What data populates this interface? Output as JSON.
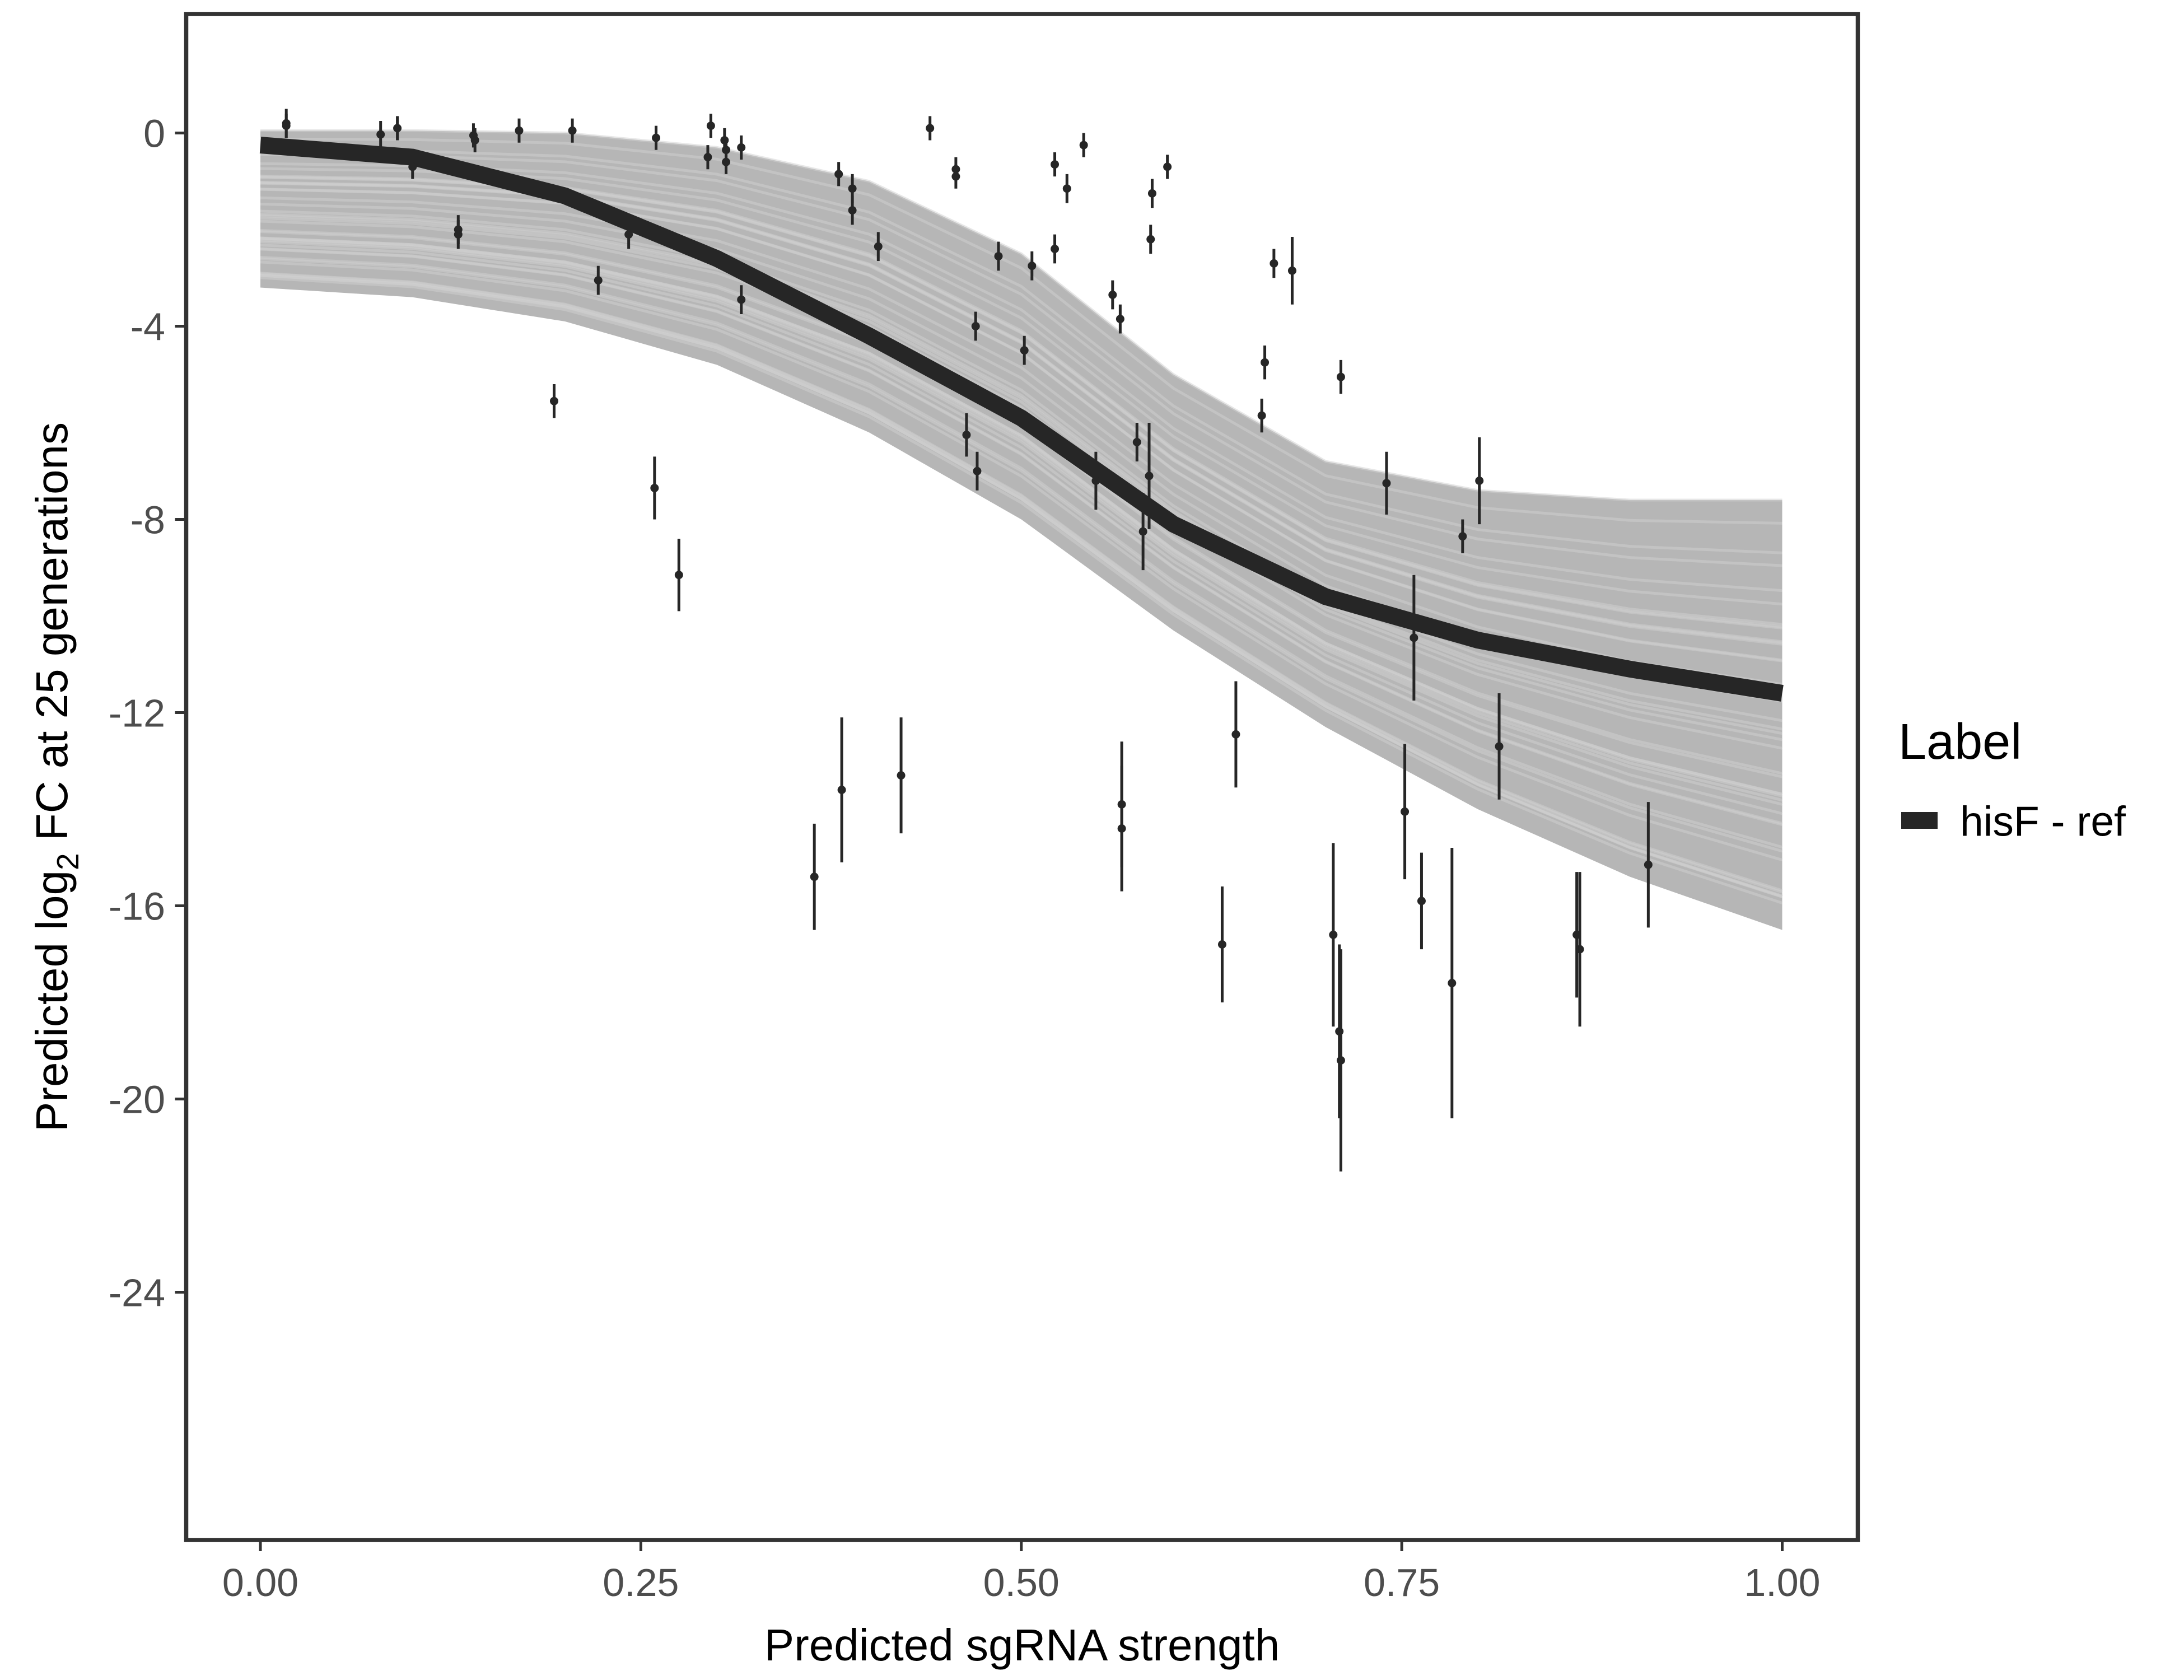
{
  "chart_data": {
    "type": "scatter",
    "xlabel": "Predicted sgRNA strength",
    "ylabel": {
      "pre": "Predicted  log",
      "sub": "2",
      "post": " FC at 25 generations"
    },
    "xlim": [
      -0.05,
      1.05
    ],
    "ylim": [
      -29.1,
      2.45
    ],
    "xticks": [
      0,
      0.25,
      0.5,
      0.75,
      1.0
    ],
    "xtick_labels": [
      "0.00",
      "0.25",
      "0.50",
      "0.75",
      "1.00"
    ],
    "yticks": [
      0,
      -4,
      -8,
      -12,
      -16,
      -20,
      -24
    ],
    "ytick_labels": [
      "0",
      "-4",
      "-8",
      "-12",
      "-16",
      "-20",
      "-24"
    ],
    "grid": false,
    "legend": {
      "title": "Label",
      "entries": [
        "hisF - ref"
      ],
      "placement": "right"
    },
    "colors": {
      "fit": "#262626",
      "band": "#a9a9a9",
      "points": "#262626",
      "frame": "#333333"
    },
    "fit_curve": {
      "name": "hisF - ref",
      "x": [
        0,
        0.1,
        0.2,
        0.3,
        0.4,
        0.5,
        0.6,
        0.7,
        0.8,
        0.9,
        1.0
      ],
      "y": [
        -0.25,
        -0.5,
        -1.3,
        -2.6,
        -4.2,
        -5.9,
        -8.1,
        -9.6,
        -10.5,
        -11.1,
        -11.6
      ]
    },
    "posterior_band": {
      "x": [
        0,
        0.1,
        0.2,
        0.3,
        0.4,
        0.5,
        0.6,
        0.7,
        0.8,
        0.9,
        1.0
      ],
      "upper": [
        0.05,
        0.05,
        0.0,
        -0.3,
        -1.0,
        -2.5,
        -5.0,
        -6.8,
        -7.4,
        -7.6,
        -7.6
      ],
      "lower": [
        -3.2,
        -3.4,
        -3.9,
        -4.8,
        -6.2,
        -8.0,
        -10.3,
        -12.3,
        -14.0,
        -15.4,
        -16.5
      ]
    },
    "points": [
      {
        "x": 0.017,
        "y": 0.2,
        "lo": -0.1,
        "hi": 0.5
      },
      {
        "x": 0.017,
        "y": 0.15,
        "lo": -0.1,
        "hi": 0.4
      },
      {
        "x": 0.079,
        "y": -0.03,
        "lo": -0.3,
        "hi": 0.25
      },
      {
        "x": 0.09,
        "y": 0.1,
        "lo": -0.15,
        "hi": 0.35
      },
      {
        "x": 0.1,
        "y": -0.7,
        "lo": -0.95,
        "hi": -0.45
      },
      {
        "x": 0.13,
        "y": -2.0,
        "lo": -2.3,
        "hi": -1.7
      },
      {
        "x": 0.13,
        "y": -2.1,
        "lo": -2.4,
        "hi": -1.8
      },
      {
        "x": 0.14,
        "y": -0.05,
        "lo": -0.3,
        "hi": 0.2
      },
      {
        "x": 0.141,
        "y": -0.15,
        "lo": -0.4,
        "hi": 0.1
      },
      {
        "x": 0.17,
        "y": 0.05,
        "lo": -0.2,
        "hi": 0.3
      },
      {
        "x": 0.193,
        "y": -5.55,
        "lo": -5.9,
        "hi": -5.2
      },
      {
        "x": 0.205,
        "y": 0.05,
        "lo": -0.2,
        "hi": 0.3
      },
      {
        "x": 0.222,
        "y": -3.05,
        "lo": -3.35,
        "hi": -2.75
      },
      {
        "x": 0.242,
        "y": -2.1,
        "lo": -2.4,
        "hi": -1.8
      },
      {
        "x": 0.259,
        "y": -7.35,
        "lo": -8.0,
        "hi": -6.7
      },
      {
        "x": 0.26,
        "y": -0.1,
        "lo": -0.35,
        "hi": 0.15
      },
      {
        "x": 0.275,
        "y": -9.15,
        "lo": -9.9,
        "hi": -8.4
      },
      {
        "x": 0.294,
        "y": -0.5,
        "lo": -0.75,
        "hi": -0.25
      },
      {
        "x": 0.296,
        "y": 0.15,
        "lo": -0.1,
        "hi": 0.4
      },
      {
        "x": 0.305,
        "y": -0.15,
        "lo": -0.4,
        "hi": 0.1
      },
      {
        "x": 0.306,
        "y": -0.35,
        "lo": -0.6,
        "hi": -0.1
      },
      {
        "x": 0.306,
        "y": -0.6,
        "lo": -0.85,
        "hi": -0.35
      },
      {
        "x": 0.316,
        "y": -0.3,
        "lo": -0.55,
        "hi": -0.05
      },
      {
        "x": 0.316,
        "y": -3.45,
        "lo": -3.75,
        "hi": -3.15
      },
      {
        "x": 0.364,
        "y": -15.4,
        "lo": -16.5,
        "hi": -14.3
      },
      {
        "x": 0.38,
        "y": -0.85,
        "lo": -1.1,
        "hi": -0.6
      },
      {
        "x": 0.382,
        "y": -13.6,
        "lo": -15.1,
        "hi": -12.1
      },
      {
        "x": 0.389,
        "y": -1.15,
        "lo": -1.45,
        "hi": -0.85
      },
      {
        "x": 0.389,
        "y": -1.6,
        "lo": -1.9,
        "hi": -1.3
      },
      {
        "x": 0.406,
        "y": -2.35,
        "lo": -2.65,
        "hi": -2.05
      },
      {
        "x": 0.421,
        "y": -13.3,
        "lo": -14.5,
        "hi": -12.1
      },
      {
        "x": 0.44,
        "y": 0.1,
        "lo": -0.15,
        "hi": 0.35
      },
      {
        "x": 0.457,
        "y": -0.75,
        "lo": -1.0,
        "hi": -0.5
      },
      {
        "x": 0.457,
        "y": -0.9,
        "lo": -1.15,
        "hi": -0.65
      },
      {
        "x": 0.464,
        "y": -6.25,
        "lo": -6.7,
        "hi": -5.8
      },
      {
        "x": 0.47,
        "y": -4.0,
        "lo": -4.3,
        "hi": -3.7
      },
      {
        "x": 0.471,
        "y": -7.0,
        "lo": -7.4,
        "hi": -6.6
      },
      {
        "x": 0.485,
        "y": -2.55,
        "lo": -2.85,
        "hi": -2.25
      },
      {
        "x": 0.502,
        "y": -4.5,
        "lo": -4.8,
        "hi": -4.2
      },
      {
        "x": 0.507,
        "y": -2.75,
        "lo": -3.05,
        "hi": -2.45
      },
      {
        "x": 0.522,
        "y": -0.65,
        "lo": -0.9,
        "hi": -0.4
      },
      {
        "x": 0.522,
        "y": -2.4,
        "lo": -2.7,
        "hi": -2.1
      },
      {
        "x": 0.53,
        "y": -1.15,
        "lo": -1.45,
        "hi": -0.85
      },
      {
        "x": 0.541,
        "y": -0.25,
        "lo": -0.5,
        "hi": 0.0
      },
      {
        "x": 0.549,
        "y": -7.2,
        "lo": -7.8,
        "hi": -6.6
      },
      {
        "x": 0.56,
        "y": -3.35,
        "lo": -3.65,
        "hi": -3.05
      },
      {
        "x": 0.565,
        "y": -3.85,
        "lo": -4.15,
        "hi": -3.55
      },
      {
        "x": 0.566,
        "y": -13.9,
        "lo": -15.2,
        "hi": -12.6
      },
      {
        "x": 0.566,
        "y": -14.4,
        "lo": -15.7,
        "hi": -13.1
      },
      {
        "x": 0.576,
        "y": -6.4,
        "lo": -6.8,
        "hi": -6.0
      },
      {
        "x": 0.58,
        "y": -8.25,
        "lo": -9.05,
        "hi": -7.45
      },
      {
        "x": 0.584,
        "y": -7.1,
        "lo": -8.2,
        "hi": -6.0
      },
      {
        "x": 0.585,
        "y": -2.2,
        "lo": -2.5,
        "hi": -1.9
      },
      {
        "x": 0.586,
        "y": -1.25,
        "lo": -1.55,
        "hi": -0.95
      },
      {
        "x": 0.596,
        "y": -0.7,
        "lo": -0.95,
        "hi": -0.45
      },
      {
        "x": 0.632,
        "y": -16.8,
        "lo": -18.0,
        "hi": -15.6
      },
      {
        "x": 0.641,
        "y": -12.45,
        "lo": -13.55,
        "hi": -11.35
      },
      {
        "x": 0.658,
        "y": -5.85,
        "lo": -6.2,
        "hi": -5.5
      },
      {
        "x": 0.66,
        "y": -4.75,
        "lo": -5.1,
        "hi": -4.4
      },
      {
        "x": 0.666,
        "y": -2.7,
        "lo": -3.0,
        "hi": -2.4
      },
      {
        "x": 0.678,
        "y": -2.85,
        "lo": -3.55,
        "hi": -2.15
      },
      {
        "x": 0.705,
        "y": -16.6,
        "lo": -18.5,
        "hi": -14.7
      },
      {
        "x": 0.709,
        "y": -18.6,
        "lo": -20.4,
        "hi": -16.8
      },
      {
        "x": 0.71,
        "y": -19.2,
        "lo": -21.5,
        "hi": -16.9
      },
      {
        "x": 0.71,
        "y": -5.05,
        "lo": -5.4,
        "hi": -4.7
      },
      {
        "x": 0.74,
        "y": -7.25,
        "lo": -7.9,
        "hi": -6.6
      },
      {
        "x": 0.752,
        "y": -14.05,
        "lo": -15.45,
        "hi": -12.65
      },
      {
        "x": 0.758,
        "y": -10.45,
        "lo": -11.75,
        "hi": -9.15
      },
      {
        "x": 0.763,
        "y": -15.9,
        "lo": -16.9,
        "hi": -14.9
      },
      {
        "x": 0.783,
        "y": -17.6,
        "lo": -20.4,
        "hi": -14.8
      },
      {
        "x": 0.79,
        "y": -8.35,
        "lo": -8.7,
        "hi": -8.0
      },
      {
        "x": 0.801,
        "y": -7.2,
        "lo": -8.1,
        "hi": -6.3
      },
      {
        "x": 0.814,
        "y": -12.7,
        "lo": -13.8,
        "hi": -11.6
      },
      {
        "x": 0.865,
        "y": -16.6,
        "lo": -17.9,
        "hi": -15.3
      },
      {
        "x": 0.867,
        "y": -16.9,
        "lo": -18.5,
        "hi": -15.3
      },
      {
        "x": 0.912,
        "y": -15.15,
        "lo": -16.45,
        "hi": -13.85
      }
    ]
  }
}
